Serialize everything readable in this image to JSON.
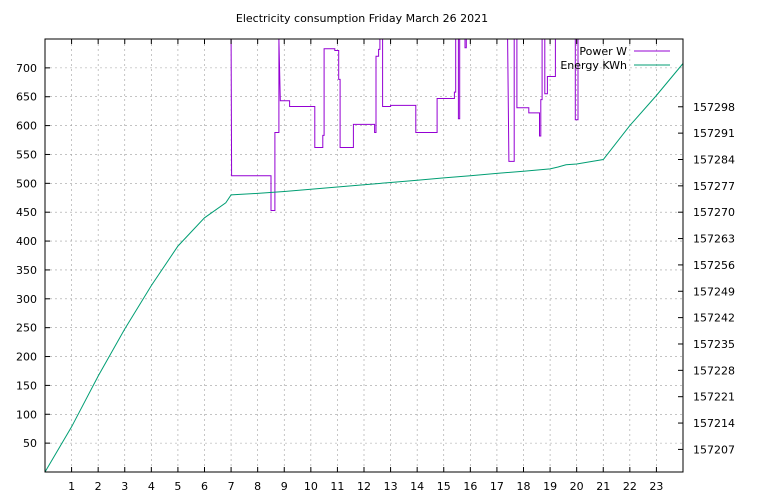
{
  "chart_data": {
    "type": "line",
    "title": "Electricity consumption Friday March 26 2021",
    "xlabel": "",
    "ylabel": "",
    "y2label": "",
    "grid": true,
    "legend_placement": "top-right",
    "xlim": [
      0,
      24
    ],
    "ylim": [
      0,
      750
    ],
    "y2lim": [
      157201,
      157316
    ],
    "x_ticks": [
      1,
      2,
      3,
      4,
      5,
      6,
      7,
      8,
      9,
      10,
      11,
      12,
      13,
      14,
      15,
      16,
      17,
      18,
      19,
      20,
      21,
      22,
      23
    ],
    "y_ticks": [
      50,
      100,
      150,
      200,
      250,
      300,
      350,
      400,
      450,
      500,
      550,
      600,
      650,
      700
    ],
    "y2_ticks": [
      157207,
      157214,
      157221,
      157228,
      157235,
      157242,
      157249,
      157256,
      157263,
      157270,
      157277,
      157284,
      157291,
      157298
    ],
    "series": [
      {
        "name": "Power W",
        "color": "#9400d3",
        "axis": "y",
        "step": true,
        "points": [
          [
            7.0,
            750
          ],
          [
            7.02,
            513
          ],
          [
            8.5,
            513
          ],
          [
            8.5,
            453
          ],
          [
            8.65,
            453
          ],
          [
            8.65,
            588
          ],
          [
            8.8,
            588
          ],
          [
            8.8,
            750
          ],
          [
            8.85,
            643
          ],
          [
            9.2,
            643
          ],
          [
            9.2,
            633
          ],
          [
            10.15,
            633
          ],
          [
            10.15,
            562
          ],
          [
            10.45,
            562
          ],
          [
            10.45,
            583
          ],
          [
            10.5,
            583
          ],
          [
            10.5,
            733
          ],
          [
            10.9,
            733
          ],
          [
            10.9,
            730
          ],
          [
            11.05,
            730
          ],
          [
            11.05,
            680
          ],
          [
            11.1,
            680
          ],
          [
            11.1,
            562
          ],
          [
            11.6,
            562
          ],
          [
            11.6,
            602
          ],
          [
            12.4,
            602
          ],
          [
            12.4,
            588
          ],
          [
            12.45,
            588
          ],
          [
            12.45,
            720
          ],
          [
            12.55,
            720
          ],
          [
            12.55,
            732
          ],
          [
            12.6,
            732
          ],
          [
            12.6,
            750
          ],
          [
            12.7,
            750
          ],
          [
            12.7,
            633
          ],
          [
            13.0,
            633
          ],
          [
            13.0,
            635
          ],
          [
            13.95,
            635
          ],
          [
            13.95,
            588
          ],
          [
            14.75,
            588
          ],
          [
            14.75,
            647
          ],
          [
            15.4,
            647
          ],
          [
            15.4,
            658
          ],
          [
            15.45,
            658
          ],
          [
            15.45,
            750
          ],
          [
            15.55,
            750
          ],
          [
            15.55,
            612
          ],
          [
            15.6,
            612
          ],
          [
            15.6,
            750
          ],
          [
            15.8,
            750
          ],
          [
            15.8,
            735
          ],
          [
            15.85,
            735
          ],
          [
            15.85,
            750
          ],
          [
            17.4,
            750
          ],
          [
            17.45,
            538
          ],
          [
            17.65,
            538
          ],
          [
            17.65,
            750
          ],
          [
            17.75,
            750
          ],
          [
            17.75,
            631
          ],
          [
            18.2,
            631
          ],
          [
            18.2,
            622
          ],
          [
            18.6,
            622
          ],
          [
            18.6,
            582
          ],
          [
            18.65,
            582
          ],
          [
            18.65,
            645
          ],
          [
            18.7,
            645
          ],
          [
            18.7,
            750
          ],
          [
            18.8,
            750
          ],
          [
            18.8,
            655
          ],
          [
            18.9,
            655
          ],
          [
            18.9,
            685
          ],
          [
            19.2,
            685
          ],
          [
            19.2,
            750
          ],
          [
            19.95,
            750
          ],
          [
            19.95,
            610
          ],
          [
            20.05,
            610
          ],
          [
            20.05,
            750
          ]
        ]
      },
      {
        "name": "Energy KWh",
        "color": "#009e73",
        "axis": "y2",
        "step": false,
        "points": [
          [
            0,
            157201
          ],
          [
            1,
            157213
          ],
          [
            2,
            157226.5
          ],
          [
            3,
            157239
          ],
          [
            4,
            157250.5
          ],
          [
            5,
            157261
          ],
          [
            6,
            157268.5
          ],
          [
            6.8,
            157272.5
          ],
          [
            7.0,
            157274.6
          ],
          [
            8.0,
            157275
          ],
          [
            9.0,
            157275.5
          ],
          [
            10.0,
            157276.1
          ],
          [
            11.0,
            157276.7
          ],
          [
            12.0,
            157277.3
          ],
          [
            13.0,
            157277.9
          ],
          [
            14.0,
            157278.5
          ],
          [
            15.0,
            157279.1
          ],
          [
            16.0,
            157279.7
          ],
          [
            17.0,
            157280.3
          ],
          [
            18.0,
            157280.9
          ],
          [
            19.0,
            157281.5
          ],
          [
            19.3,
            157282
          ],
          [
            19.6,
            157282.6
          ],
          [
            20.0,
            157282.8
          ],
          [
            20.5,
            157283.4
          ],
          [
            21.0,
            157284
          ],
          [
            22.0,
            157293
          ],
          [
            23.0,
            157301
          ],
          [
            24.0,
            157309.5
          ]
        ]
      }
    ]
  }
}
